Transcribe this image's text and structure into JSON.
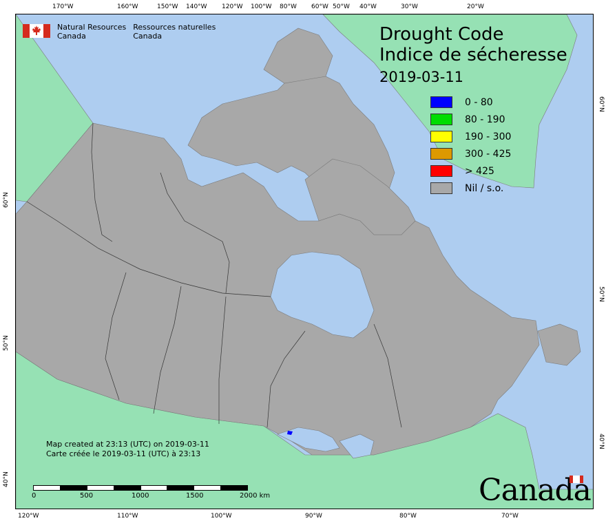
{
  "agency": {
    "en_line1": "Natural Resources",
    "en_line2": "Canada",
    "fr_line1": "Ressources naturelles",
    "fr_line2": "Canada"
  },
  "title": {
    "en": "Drought Code",
    "fr": "Indice de sécheresse",
    "date": "2019-03-11"
  },
  "legend": [
    {
      "label": "0 - 80",
      "color": "#0000ff"
    },
    {
      "label": "80 - 190",
      "color": "#00dd00"
    },
    {
      "label": "190 - 300",
      "color": "#ffff00"
    },
    {
      "label": "300 - 425",
      "color": "#dd9900"
    },
    {
      "label": "> 425",
      "color": "#ff0000"
    },
    {
      "label": "Nil / s.o.",
      "color": "#a8a8a8"
    }
  ],
  "created": {
    "en": "Map created at 23:13 (UTC) on 2019-03-11",
    "fr": "Carte créée le 2019-03-11 (UTC) à 23:13"
  },
  "scale": {
    "ticks": [
      "0",
      "500",
      "1000",
      "1500",
      "2000  km"
    ]
  },
  "wordmark": "Canada",
  "graticule": {
    "top": [
      "170°W",
      "160°W",
      "150°W",
      "140°W",
      "120°W",
      "100°W",
      "80°W",
      "60°W",
      "50°W",
      "40°W",
      "30°W",
      "20°W"
    ],
    "bottom": [
      "120°W",
      "110°W",
      "100°W",
      "90°W",
      "80°W",
      "70°W"
    ],
    "left": [
      "60°N",
      "50°N",
      "40°N"
    ],
    "right": [
      "60°N",
      "50°N",
      "40°N"
    ]
  },
  "colors": {
    "ocean": "#aecdf0",
    "canada": "#a8a8a8",
    "foreign": "#96e1b4",
    "lake": "#aecdf0"
  }
}
